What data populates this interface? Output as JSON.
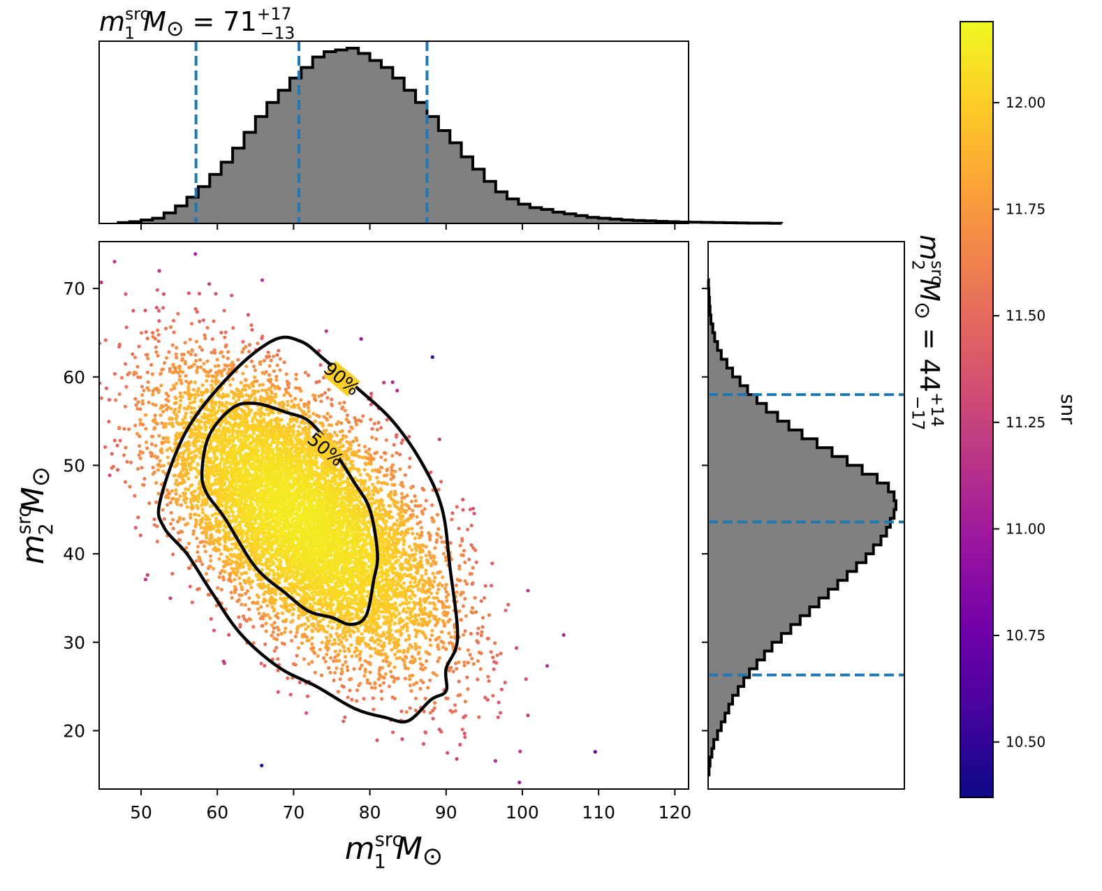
{
  "chart_data": [
    {
      "panel": "scatter",
      "type": "scatter",
      "xlabel": {
        "base": "m",
        "sub": "1",
        "sup": "src",
        "unit": "M",
        "unit_sub": "⊙"
      },
      "ylabel": {
        "base": "m",
        "sub": "2",
        "sup": "src",
        "unit": "M",
        "unit_sub": "⊙"
      },
      "xlim": [
        44.5,
        121.8
      ],
      "ylim": [
        13.4,
        75.3
      ],
      "xticks": [
        "50",
        "60",
        "70",
        "80",
        "90",
        "100",
        "110",
        "120"
      ],
      "xtick_values": [
        50,
        60,
        70,
        80,
        90,
        100,
        110,
        120
      ],
      "yticks": [
        "20",
        "30",
        "40",
        "50",
        "60",
        "70"
      ],
      "ytick_values": [
        20,
        30,
        40,
        50,
        60,
        70
      ],
      "point_color_variable": "snr",
      "point_density_model": {
        "center": [
          71,
          44
        ],
        "sigma_x": 9.0,
        "sigma_y": 8.0,
        "correlation": -0.6,
        "n_points": 9000
      },
      "contours": [
        {
          "label": "90%",
          "points": [
            [
              52.5,
              46
            ],
            [
              56,
              54
            ],
            [
              62,
              60.5
            ],
            [
              67.5,
              64.2
            ],
            [
              71,
              64
            ],
            [
              74,
              62
            ],
            [
              78,
              59
            ],
            [
              83,
              55
            ],
            [
              87,
              50
            ],
            [
              89.5,
              45
            ],
            [
              90.5,
              38.5
            ],
            [
              91.5,
              30.5
            ],
            [
              90,
              27
            ],
            [
              90,
              24.5
            ],
            [
              88,
              23.5
            ],
            [
              85,
              21.1
            ],
            [
              82,
              21.5
            ],
            [
              78,
              22.5
            ],
            [
              73,
              25
            ],
            [
              68,
              27.2
            ],
            [
              63,
              31
            ],
            [
              59,
              36
            ],
            [
              56,
              40
            ],
            [
              53,
              43
            ]
          ]
        },
        {
          "label": "50%",
          "points": [
            [
              58,
              49.5
            ],
            [
              59,
              53.5
            ],
            [
              62,
              56.5
            ],
            [
              65,
              57
            ],
            [
              69,
              56
            ],
            [
              72,
              55
            ],
            [
              75,
              52
            ],
            [
              78,
              48
            ],
            [
              80,
              45
            ],
            [
              81,
              40
            ],
            [
              80.5,
              37
            ],
            [
              79.5,
              33
            ],
            [
              77.5,
              32
            ],
            [
              75,
              32.8
            ],
            [
              72,
              33.5
            ],
            [
              69,
              35.5
            ],
            [
              65,
              38.5
            ],
            [
              61,
              44
            ],
            [
              58.5,
              47
            ]
          ]
        }
      ]
    },
    {
      "panel": "top-histogram",
      "type": "bar",
      "title": {
        "base": "m",
        "sub": "1",
        "sup": "src",
        "unit": "M",
        "unit_sub": "⊙",
        "eq": " = 71",
        "plus": "+17",
        "minus": "−13"
      },
      "xlim": [
        44.5,
        121.8
      ],
      "bin_edges_start": 47,
      "bin_width": 1.5,
      "counts": [
        0.005,
        0.01,
        0.02,
        0.03,
        0.06,
        0.1,
        0.15,
        0.21,
        0.28,
        0.35,
        0.43,
        0.52,
        0.61,
        0.69,
        0.76,
        0.83,
        0.89,
        0.95,
        0.98,
        0.99,
        1.0,
        0.97,
        0.93,
        0.89,
        0.83,
        0.76,
        0.69,
        0.61,
        0.53,
        0.46,
        0.38,
        0.31,
        0.24,
        0.18,
        0.14,
        0.11,
        0.09,
        0.08,
        0.065,
        0.055,
        0.045,
        0.035,
        0.03,
        0.025,
        0.02,
        0.017,
        0.015,
        0.012,
        0.01,
        0.008,
        0.007,
        0.006,
        0.005,
        0.004,
        0.003,
        0.002,
        0.002,
        0.001
      ],
      "quantiles": [
        57.2,
        70.7,
        87.5
      ]
    },
    {
      "panel": "right-histogram",
      "type": "bar",
      "orientation": "horizontal",
      "title": {
        "base": "m",
        "sub": "2",
        "sup": "src",
        "unit": "M",
        "unit_sub": "⊙",
        "eq": " = 44",
        "plus": "+14",
        "minus": "−17"
      },
      "ylim": [
        13.4,
        75.3
      ],
      "bin_edges_start": 15,
      "bin_width": 1.0,
      "counts": [
        0.005,
        0.01,
        0.02,
        0.03,
        0.05,
        0.07,
        0.09,
        0.11,
        0.13,
        0.16,
        0.19,
        0.22,
        0.26,
        0.3,
        0.34,
        0.39,
        0.44,
        0.49,
        0.54,
        0.59,
        0.64,
        0.69,
        0.74,
        0.79,
        0.84,
        0.88,
        0.92,
        0.95,
        0.97,
        0.99,
        1.0,
        0.99,
        0.96,
        0.9,
        0.82,
        0.74,
        0.66,
        0.58,
        0.5,
        0.43,
        0.37,
        0.31,
        0.26,
        0.21,
        0.17,
        0.13,
        0.1,
        0.07,
        0.05,
        0.035,
        0.025,
        0.015,
        0.01,
        0.007,
        0.004,
        0.002
      ],
      "quantiles": [
        26.3,
        43.6,
        58.0
      ]
    },
    {
      "panel": "colorbar",
      "type": "heatmap",
      "label": "snr",
      "colormap": "plasma",
      "range": [
        10.37,
        12.19
      ],
      "ticks": [
        "10.50",
        "10.75",
        "11.00",
        "11.25",
        "11.50",
        "11.75",
        "12.00"
      ],
      "tick_values": [
        10.5,
        10.75,
        11.0,
        11.25,
        11.5,
        11.75,
        12.0
      ]
    }
  ],
  "colors": {
    "histogram_fill": "#808080",
    "histogram_edge": "#000000",
    "quantile_line": "#1f77b4",
    "contour": "#000000",
    "colormap_stops": [
      "#0d0887",
      "#46039f",
      "#7201a8",
      "#9c179e",
      "#bd3786",
      "#d8576b",
      "#ed7953",
      "#fb9f3a",
      "#fdca26",
      "#f0f921"
    ]
  }
}
